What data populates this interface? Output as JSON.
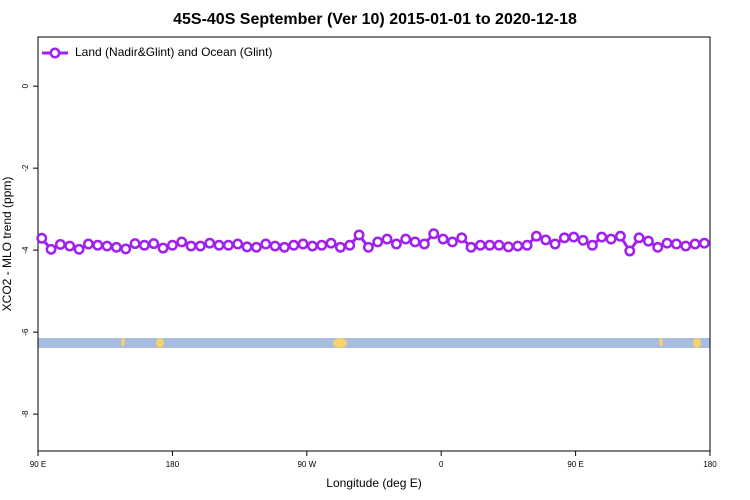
{
  "chart_data": {
    "type": "line",
    "title": "45S-40S September (Ver 10)   2015-01-01 to 2020-12-18",
    "x_label": "Longitude (deg E)",
    "y_label": "XCO2 - MLO trend (ppm)",
    "xlim": [
      90,
      540
    ],
    "ylim": [
      -8.9,
      1.2
    ],
    "xticks": [
      {
        "value": 90,
        "label": "90 E"
      },
      180,
      {
        "value": 270,
        "label": "90 W"
      },
      {
        "value": 360,
        "label": "0"
      },
      {
        "value": 450,
        "label": "90 E"
      },
      {
        "value": 540,
        "label": "180"
      }
    ],
    "yticks": [
      0,
      -2,
      -4,
      -6,
      -8
    ],
    "legend": "upper left",
    "x": [
      92.5,
      98.75,
      105,
      111.25,
      117.5,
      123.75,
      130,
      136.25,
      142.5,
      148.75,
      155,
      161.25,
      167.5,
      173.75,
      180,
      186.25,
      192.5,
      198.75,
      205,
      211.25,
      217.5,
      223.75,
      230,
      236.25,
      242.5,
      248.75,
      255,
      261.25,
      267.5,
      273.75,
      280,
      286.25,
      292.5,
      298.75,
      305,
      311.25,
      317.5,
      323.75,
      330,
      336.25,
      342.5,
      348.75,
      355,
      361.25,
      367.5,
      373.75,
      380,
      386.25,
      392.5,
      398.75,
      405,
      411.25,
      417.5,
      423.75,
      430,
      436.25,
      442.5,
      448.75,
      455,
      461.25,
      467.5,
      473.75,
      480,
      486.25,
      492.5,
      498.75,
      505,
      511.25,
      517.5,
      523.75,
      530,
      536.25
    ],
    "series": [
      {
        "name": "Land (Nadir&Glint) and Ocean (Glint)",
        "color": "#a020f0",
        "values": [
          -3.71,
          -3.98,
          -3.86,
          -3.9,
          -3.98,
          -3.85,
          -3.88,
          -3.9,
          -3.93,
          -3.97,
          -3.84,
          -3.88,
          -3.84,
          -3.95,
          -3.88,
          -3.8,
          -3.9,
          -3.9,
          -3.83,
          -3.88,
          -3.88,
          -3.85,
          -3.92,
          -3.93,
          -3.85,
          -3.9,
          -3.93,
          -3.88,
          -3.85,
          -3.9,
          -3.88,
          -3.83,
          -3.93,
          -3.88,
          -3.63,
          -3.93,
          -3.8,
          -3.73,
          -3.85,
          -3.73,
          -3.8,
          -3.85,
          -3.6,
          -3.73,
          -3.8,
          -3.7,
          -3.93,
          -3.88,
          -3.88,
          -3.88,
          -3.92,
          -3.9,
          -3.88,
          -3.66,
          -3.75,
          -3.85,
          -3.7,
          -3.68,
          -3.76,
          -3.88,
          -3.68,
          -3.73,
          -3.66,
          -4.02,
          -3.7,
          -3.78,
          -3.93,
          -3.83,
          -3.85,
          -3.9,
          -3.85,
          -3.83
        ]
      }
    ]
  }
}
